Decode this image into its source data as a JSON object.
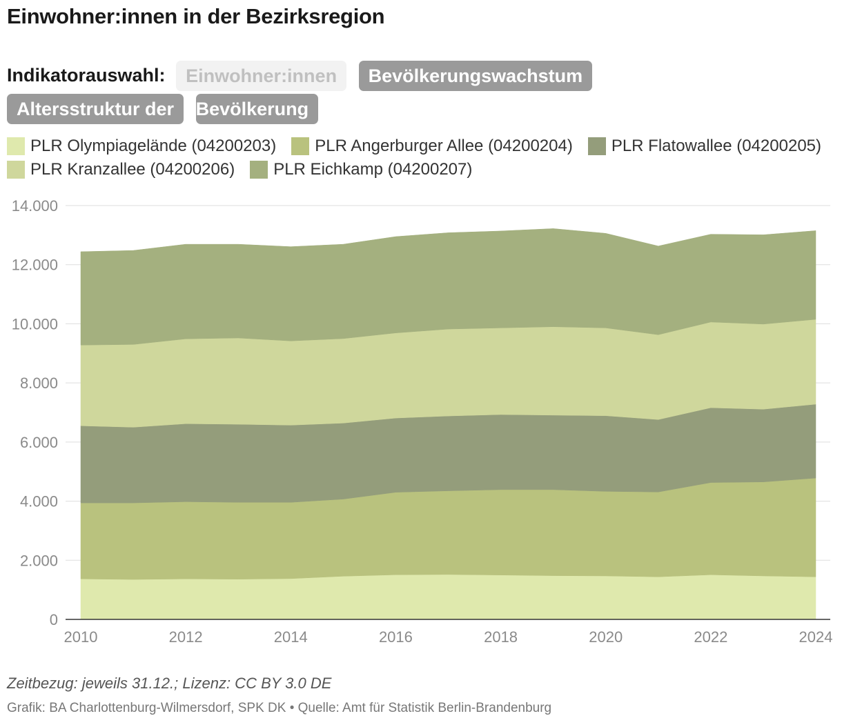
{
  "title": "Einwohner:innen in der Bezirksregion",
  "indicator": {
    "label": "Indikatorauswahl:",
    "buttons": [
      "Einwohner:innen",
      "Bevölkerungswachstum",
      "Altersstruktur der",
      "Bevölkerung"
    ]
  },
  "footer": {
    "note": "Zeitbezug: jeweils 31.12.; Lizenz: CC BY 3.0 DE",
    "source": "Grafik: BA Charlottenburg-Wilmersdorf, SPK DK • Quelle: Amt für Statistik Berlin-Brandenburg"
  },
  "chart_data": {
    "type": "area",
    "stacked": true,
    "title": "Einwohner:innen in der Bezirksregion",
    "xlabel": "",
    "ylabel": "",
    "x": [
      2010,
      2011,
      2012,
      2013,
      2014,
      2015,
      2016,
      2017,
      2018,
      2019,
      2020,
      2021,
      2022,
      2023,
      2024
    ],
    "xticks": [
      "2010",
      "2012",
      "2014",
      "2016",
      "2018",
      "2020",
      "2022",
      "2024"
    ],
    "yticks": [
      "0",
      "2.000",
      "4.000",
      "6.000",
      "8.000",
      "10.000",
      "12.000",
      "14.000"
    ],
    "ylim": [
      0,
      14000
    ],
    "xlim": [
      2010,
      2024
    ],
    "grid": true,
    "legend_position": "top",
    "series": [
      {
        "name": "PLR Olympiagelände (04200203)",
        "color": "#dfe9ad",
        "values": [
          1370,
          1350,
          1370,
          1360,
          1380,
          1460,
          1510,
          1520,
          1500,
          1480,
          1470,
          1440,
          1510,
          1470,
          1440
        ]
      },
      {
        "name": "PLR Angerburger Allee (04200204)",
        "color": "#b9c27e",
        "values": [
          2570,
          2590,
          2610,
          2600,
          2580,
          2610,
          2790,
          2830,
          2890,
          2910,
          2860,
          2870,
          3120,
          3180,
          3340
        ]
      },
      {
        "name": "PLR Flatowallee (04200205)",
        "color": "#949d7b",
        "values": [
          2610,
          2560,
          2640,
          2640,
          2610,
          2570,
          2510,
          2530,
          2540,
          2520,
          2560,
          2450,
          2530,
          2460,
          2500
        ]
      },
      {
        "name": "PLR Kranzallee (04200206)",
        "color": "#cfd79c",
        "values": [
          2730,
          2800,
          2870,
          2920,
          2850,
          2860,
          2880,
          2940,
          2930,
          2990,
          2970,
          2870,
          2900,
          2880,
          2870
        ]
      },
      {
        "name": "PLR Eichkamp (04200207)",
        "color": "#a4b07f",
        "values": [
          3160,
          3180,
          3200,
          3170,
          3190,
          3190,
          3260,
          3260,
          3280,
          3320,
          3200,
          3000,
          2970,
          3020,
          3000
        ]
      }
    ]
  }
}
